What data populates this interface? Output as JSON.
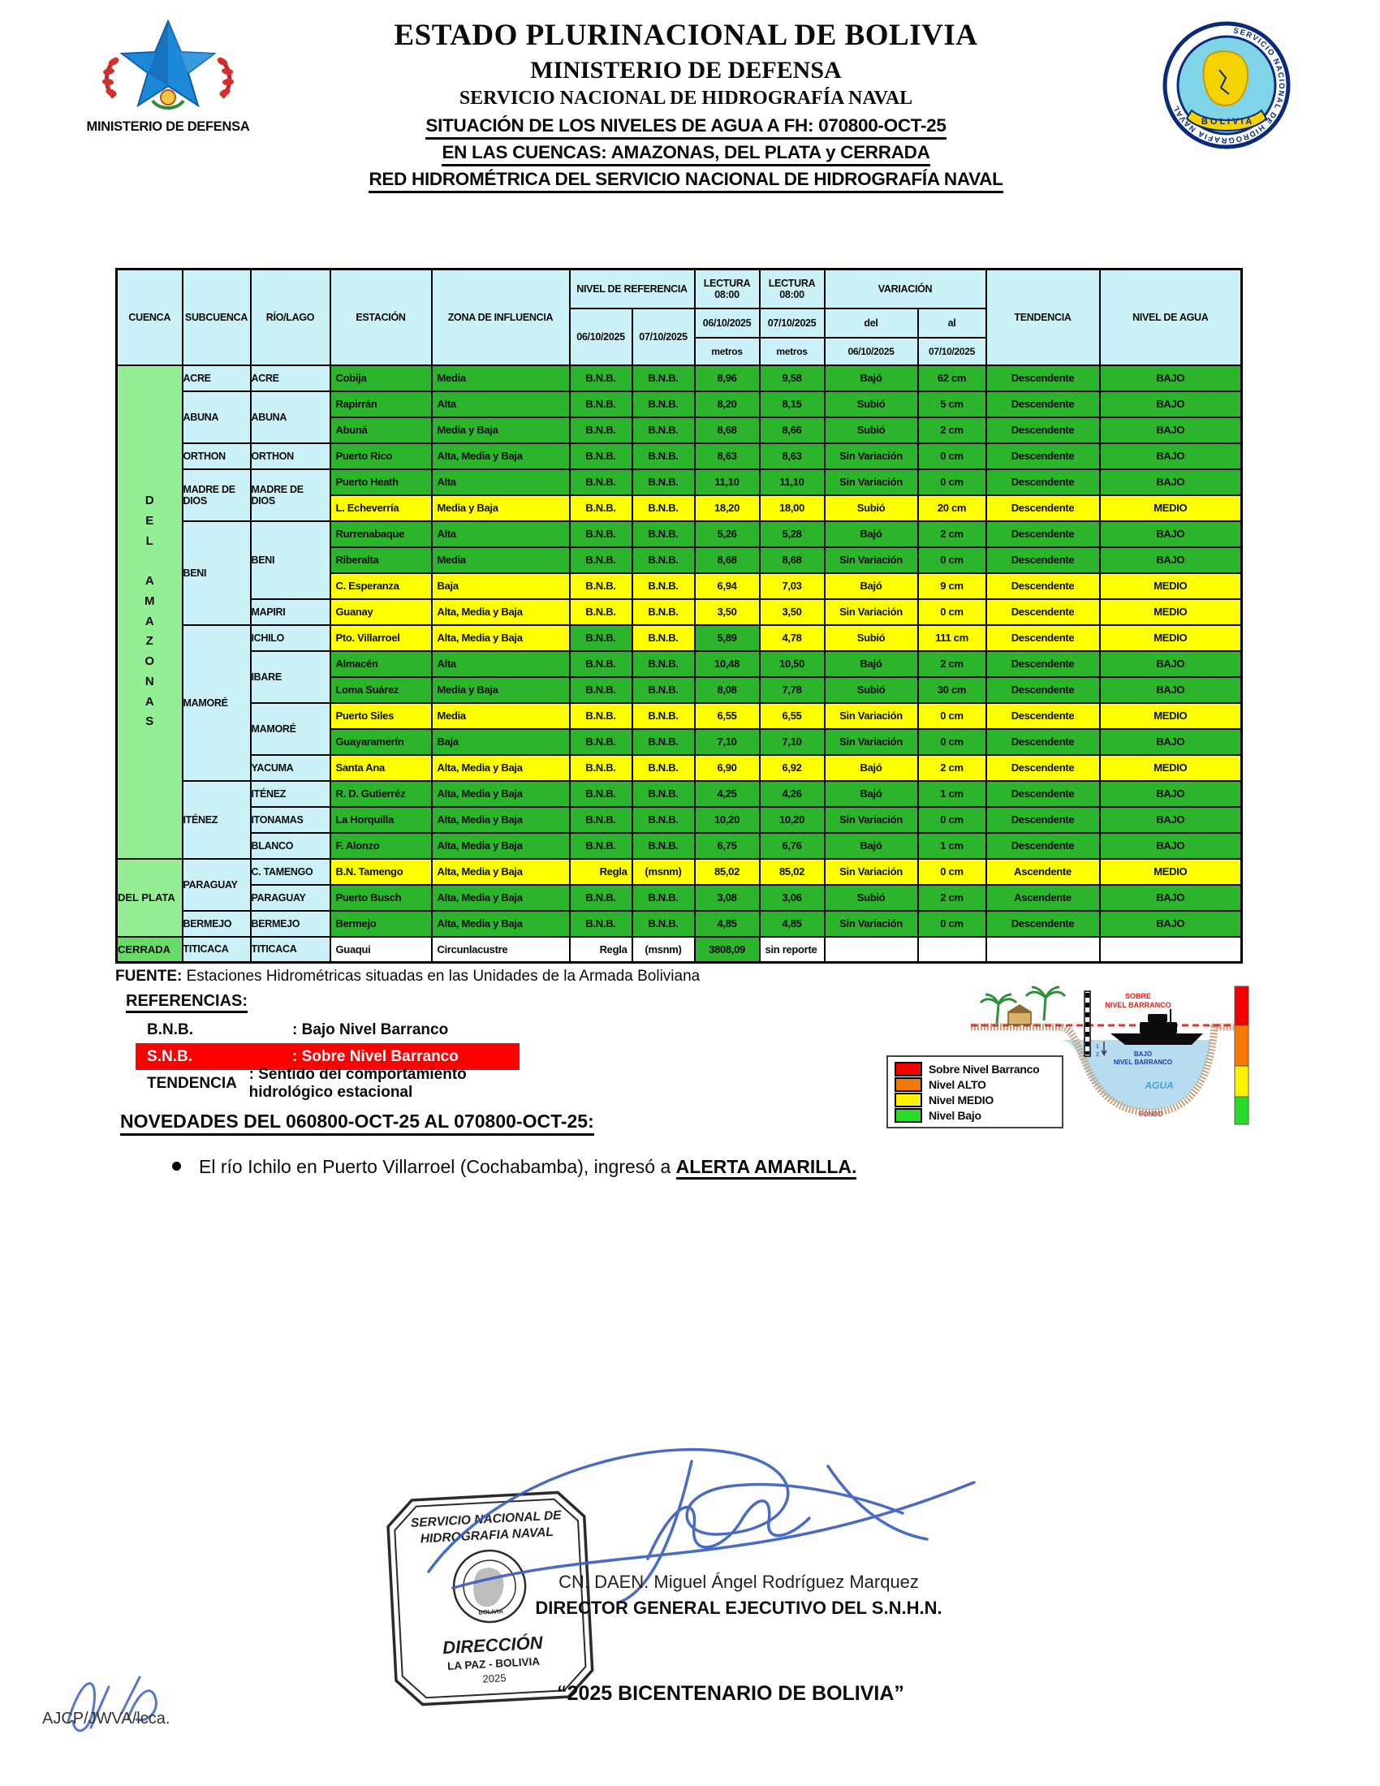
{
  "header": {
    "left_logo_caption": "MINISTERIO DE DEFENSA",
    "right_logo_ring": "SERVICIO NACIONAL DE HIDROGRAFIA NAVAL",
    "right_logo_bottom": "B O L I V I A",
    "title1": "ESTADO PLURINACIONAL DE BOLIVIA",
    "title2": "MINISTERIO DE DEFENSA",
    "title3": "SERVICIO NACIONAL DE HIDROGRAFÍA NAVAL",
    "subtitle1": "SITUACIÓN DE LOS NIVELES DE AGUA A FH: 070800-OCT-25",
    "subtitle2": "EN LAS CUENCAS: AMAZONAS, DEL PLATA y CERRADA",
    "subtitle3": "RED HIDROMÉTRICA DEL SERVICIO NACIONAL DE HIDROGRAFÍA NAVAL"
  },
  "table": {
    "h_cuenca": "CUENCA",
    "h_subcuenca": "SUBCUENCA",
    "h_rio": "RÍO/LAGO",
    "h_estacion": "ESTACIÓN",
    "h_zona": "ZONA DE INFLUENCIA",
    "h_nivel_ref": "NIVEL DE REFERENCIA",
    "h_lectura": "LECTURA\n08:00",
    "h_variacion": "VARIACIÓN",
    "h_tendencia": "TENDENCIA",
    "h_nivel_agua": "NIVEL DE AGUA",
    "ref_date1": "06/10/2025",
    "ref_date2": "07/10/2025",
    "lect_date1": "06/10/2025",
    "lect_date2": "07/10/2025",
    "metros1": "metros",
    "metros2": "metros",
    "del": "del",
    "al": "al",
    "var_date1": "06/10/2025",
    "var_date2": "07/10/2025",
    "rows": [
      {
        "cuenca": {
          "text": "D\nE\nL\n\nA\nM\nA\nZ\nO\nN\nA\nS",
          "span": 19,
          "cls": "vert"
        },
        "sub": {
          "text": "ACRE",
          "span": 1
        },
        "rio": {
          "text": "ACRE",
          "span": 1
        },
        "c": [
          "Cobija",
          "Media",
          "B.N.B.",
          "B.N.B.",
          "8,96",
          "9,58",
          "Bajó",
          "62 cm",
          "Descendente",
          "BAJO"
        ],
        "bg": "g"
      },
      {
        "sub": {
          "text": "ABUNA",
          "span": 2
        },
        "rio": {
          "text": "ABUNA",
          "span": 2
        },
        "c": [
          "Rapirrán",
          "Alta",
          "B.N.B.",
          "B.N.B.",
          "8,20",
          "8,15",
          "Subió",
          "5 cm",
          "Descendente",
          "BAJO"
        ],
        "bg": "g"
      },
      {
        "c": [
          "Abuná",
          "Media y Baja",
          "B.N.B.",
          "B.N.B.",
          "8,68",
          "8,66",
          "Subió",
          "2 cm",
          "Descendente",
          "BAJO"
        ],
        "bg": "g"
      },
      {
        "sub": {
          "text": "ORTHON",
          "span": 1
        },
        "rio": {
          "text": "ORTHON",
          "span": 1
        },
        "c": [
          "Puerto Rico",
          "Alta, Media y Baja",
          "B.N.B.",
          "B.N.B.",
          "8,63",
          "8,63",
          "Sin Variación",
          "0 cm",
          "Descendente",
          "BAJO"
        ],
        "bg": "g"
      },
      {
        "sub": {
          "text": "MADRE DE DIOS",
          "span": 2
        },
        "rio": {
          "text": "MADRE DE DIOS",
          "span": 2
        },
        "c": [
          "Puerto Heath",
          "Alta",
          "B.N.B.",
          "B.N.B.",
          "11,10",
          "11,10",
          "Sin Variación",
          "0 cm",
          "Descendente",
          "BAJO"
        ],
        "bg": "g"
      },
      {
        "c": [
          "L. Echeverría",
          "Media y Baja",
          "B.N.B.",
          "B.N.B.",
          "18,20",
          "18,00",
          "Subió",
          "20 cm",
          "Descendente",
          "MEDIO"
        ],
        "bg": "y"
      },
      {
        "sub": {
          "text": "BENI",
          "span": 4
        },
        "rio": {
          "text": "BENI",
          "span": 3
        },
        "c": [
          "Rurrenabaque",
          "Alta",
          "B.N.B.",
          "B.N.B.",
          "5,26",
          "5,28",
          "Bajó",
          "2 cm",
          "Descendente",
          "BAJO"
        ],
        "bg": "g"
      },
      {
        "c": [
          "Riberalta",
          "Media",
          "B.N.B.",
          "B.N.B.",
          "8,68",
          "8,68",
          "Sin Variación",
          "0 cm",
          "Descendente",
          "BAJO"
        ],
        "bg": "g"
      },
      {
        "c": [
          "C. Esperanza",
          "Baja",
          "B.N.B.",
          "B.N.B.",
          "6,94",
          "7,03",
          "Bajó",
          "9 cm",
          "Descendente",
          "MEDIO"
        ],
        "bg": "y"
      },
      {
        "rio": {
          "text": "MAPIRI",
          "span": 1
        },
        "c": [
          "Guanay",
          "Alta, Media y Baja",
          "B.N.B.",
          "B.N.B.",
          "3,50",
          "3,50",
          "Sin Variación",
          "0 cm",
          "Descendente",
          "MEDIO"
        ],
        "bg": "y"
      },
      {
        "sub": {
          "text": "MAMORÉ",
          "span": 6
        },
        "rio": {
          "text": "ICHILO",
          "span": 1
        },
        "c": [
          "Pto. Villarroel",
          "Alta, Media y Baja",
          "B.N.B.",
          "B.N.B.",
          "5,89",
          "4,78",
          "Subió",
          "111 cm",
          "Descendente",
          "MEDIO"
        ],
        "bg": "y",
        "cc": [
          "y",
          "y",
          "g",
          "y",
          "g",
          "y",
          "y",
          "y",
          "y",
          "y"
        ]
      },
      {
        "rio": {
          "text": "IBARE",
          "span": 2
        },
        "c": [
          "Almacén",
          "Alta",
          "B.N.B.",
          "B.N.B.",
          "10,48",
          "10,50",
          "Bajó",
          "2 cm",
          "Descendente",
          "BAJO"
        ],
        "bg": "g"
      },
      {
        "c": [
          "Loma Suárez",
          "Media y Baja",
          "B.N.B.",
          "B.N.B.",
          "8,08",
          "7,78",
          "Subió",
          "30 cm",
          "Descendente",
          "BAJO"
        ],
        "bg": "g"
      },
      {
        "rio": {
          "text": "MAMORÉ",
          "span": 2
        },
        "c": [
          "Puerto Siles",
          "Media",
          "B.N.B.",
          "B.N.B.",
          "6,55",
          "6,55",
          "Sin Variación",
          "0 cm",
          "Descendente",
          "MEDIO"
        ],
        "bg": "y"
      },
      {
        "c": [
          "Guayaramerín",
          "Baja",
          "B.N.B.",
          "B.N.B.",
          "7,10",
          "7,10",
          "Sin Variación",
          "0 cm",
          "Descendente",
          "BAJO"
        ],
        "bg": "g"
      },
      {
        "rio": {
          "text": "YACUMA",
          "span": 1
        },
        "c": [
          "Santa Ana",
          "Alta, Media y Baja",
          "B.N.B.",
          "B.N.B.",
          "6,90",
          "6,92",
          "Bajó",
          "2 cm",
          "Descendente",
          "MEDIO"
        ],
        "bg": "y"
      },
      {
        "sub": {
          "text": "ITÉNEZ",
          "span": 3
        },
        "rio": {
          "text": "ITÉNEZ",
          "span": 1
        },
        "c": [
          "R. D. Gutierréz",
          "Alta, Media y Baja",
          "B.N.B.",
          "B.N.B.",
          "4,25",
          "4,26",
          "Bajó",
          "1 cm",
          "Descendente",
          "BAJO"
        ],
        "bg": "g"
      },
      {
        "rio": {
          "text": "ITONAMAS",
          "span": 1
        },
        "c": [
          "La Horquilla",
          "Alta, Media y Baja",
          "B.N.B.",
          "B.N.B.",
          "10,20",
          "10,20",
          "Sin Variación",
          "0 cm",
          "Descendente",
          "BAJO"
        ],
        "bg": "g"
      },
      {
        "rio": {
          "text": "BLANCO",
          "span": 1
        },
        "c": [
          "F. Alonzo",
          "Alta, Media y Baja",
          "B.N.B.",
          "B.N.B.",
          "6,75",
          "6,76",
          "Bajó",
          "1 cm",
          "Descendente",
          "BAJO"
        ],
        "bg": "g"
      },
      {
        "cuenca": {
          "text": "DEL PLATA",
          "span": 3
        },
        "sub": {
          "text": "PARAGUAY",
          "span": 2
        },
        "rio": {
          "text": "C. TAMENGO",
          "span": 1
        },
        "c": [
          "B.N. Tamengo",
          "Alta, Media y Baja",
          "Regla",
          "(msnm)",
          "85,02",
          "85,02",
          "Sin Variación",
          "0 cm",
          "Ascendente",
          "MEDIO"
        ],
        "bg": "y",
        "al": {
          "2": "r"
        }
      },
      {
        "rio": {
          "text": "PARAGUAY",
          "span": 1
        },
        "c": [
          "Puerto Busch",
          "Alta, Media y Baja",
          "B.N.B.",
          "B.N.B.",
          "3,08",
          "3,06",
          "Subió",
          "2 cm",
          "Ascendente",
          "BAJO"
        ],
        "bg": "g"
      },
      {
        "sub": {
          "text": "BERMEJO",
          "span": 1
        },
        "rio": {
          "text": "BERMEJO",
          "span": 1
        },
        "c": [
          "Bermejo",
          "Alta, Media y Baja",
          "B.N.B.",
          "B.N.B.",
          "4,85",
          "4,85",
          "Sin Variación",
          "0 cm",
          "Descendente",
          "BAJO"
        ],
        "bg": "g"
      },
      {
        "cuenca": {
          "text": "CERRADA",
          "span": 1,
          "cls": "cerrada"
        },
        "sub": {
          "text": "TITICACA",
          "span": 1
        },
        "rio": {
          "text": "TITICACA",
          "span": 1
        },
        "c": [
          "Guaqui",
          "Circunlacustre",
          "Regla",
          "(msnm)",
          "3808,09",
          "sin reporte",
          "",
          "",
          "",
          ""
        ],
        "bg": "w",
        "cc": [
          "w",
          "w",
          "w",
          "w",
          "g",
          "w",
          "w",
          "w",
          "w",
          "w"
        ],
        "al": {
          "2": "r",
          "5": "l"
        }
      }
    ]
  },
  "fuente": {
    "label": "FUENTE:",
    "text": " Estaciones Hidrométricas situadas en las Unidades de la Armada Boliviana"
  },
  "references": {
    "heading": "REFERENCIAS:",
    "items": [
      {
        "term": "B.N.B.",
        "def": ": Bajo Nivel Barranco",
        "highlight": false
      },
      {
        "term": "S.N.B.",
        "def": ": Sobre Nivel Barranco",
        "highlight": true
      },
      {
        "term": "TENDENCIA",
        "def": ": Sentido del comportamiento hidrológico estacional",
        "highlight": false
      }
    ],
    "highlight_color": "#fd0002"
  },
  "legend": {
    "items": [
      {
        "label": "Sobre Nivel Barranco",
        "color": "#f40000"
      },
      {
        "label": "Nivel ALTO",
        "color": "#f57900"
      },
      {
        "label": "Nivel MEDIO",
        "color": "#fff200"
      },
      {
        "label": "Nivel Bajo",
        "color": "#2adb2a"
      }
    ]
  },
  "diagram": {
    "sobre1": "SOBRE",
    "sobre2": "NIVEL BARRANCO",
    "bajo1": "BAJO",
    "bajo2": "NIVEL BARRANCO",
    "agua": "AGUA",
    "fondo": "FONDO"
  },
  "novedades": {
    "heading": "NOVEDADES DEL 060800-OCT-25  AL 070800-OCT-25:",
    "bullet_prefix": "El río Ichilo en Puerto Villarroel (Cochabamba), ingresó a ",
    "bullet_alert": "ALERTA AMARILLA."
  },
  "stamp": {
    "line1": "SERVICIO NACIONAL DE",
    "line2": "HIDROGRAFIA NAVAL",
    "direccion": "DIRECCIÓN",
    "city": "LA PAZ - BOLIVIA",
    "year": "2025",
    "seal_bottom": "BOLIVIA"
  },
  "signature": {
    "name": "CN. DAEN. Miguel Ángel Rodríguez Marquez",
    "role": "DIRECTOR GENERAL EJECUTIVO DEL S.N.H.N."
  },
  "footer": {
    "motto": "“2025 BICENTENARIO DE BOLIVIA”",
    "initials": "AJCP/JWVA/lcca."
  },
  "colors": {
    "row_green": "#2db42d",
    "row_yellow": "#ffff00",
    "header_cyan": "#cbf2f8",
    "cuenca_green": "#94ef94",
    "cerrada_green": "#68da68",
    "snb_red": "#fd0002"
  }
}
